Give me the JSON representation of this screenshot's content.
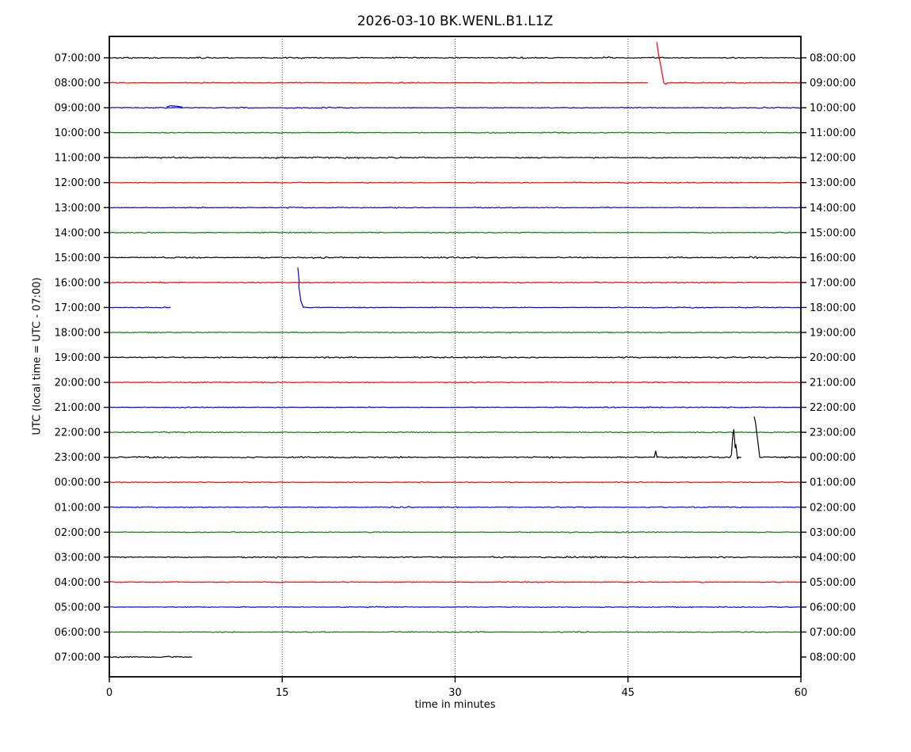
{
  "title": "2026-03-10 BK.WENL.B1.L1Z",
  "xlabel": "time in minutes",
  "ylabel": "UTC (local time = UTC - 07:00)",
  "chart_data": {
    "type": "line",
    "subtype": "helicorder-dayplot",
    "title": "2026-03-10 BK.WENL.B1.L1Z",
    "xlabel": "time in minutes",
    "ylabel_left": "UTC (local time = UTC - 07:00)",
    "xlim": [
      0,
      60
    ],
    "x_ticks": [
      0,
      15,
      30,
      45,
      60
    ],
    "grid_x": [
      15,
      30,
      45
    ],
    "grid_style": "dotted",
    "minutes_per_row": 60,
    "colors": {
      "black": "#000000",
      "red": "#ff0000",
      "blue": "#0000ff",
      "green": "#008000"
    },
    "color_cycle": [
      "black",
      "red",
      "blue",
      "green"
    ],
    "rows": [
      {
        "utc": "07:00:00",
        "end": "08:00:00",
        "color": "black",
        "segments": [
          {
            "flat": [
              0,
              60
            ]
          }
        ]
      },
      {
        "utc": "08:00:00",
        "end": "09:00:00",
        "color": "red",
        "segments": [
          {
            "flat": [
              0,
              46.7
            ]
          },
          {
            "line": [
              [
                47.5,
                51
              ],
              [
                47.64,
                37
              ],
              [
                48.11,
                0
              ],
              [
                48.28,
                -2
              ],
              [
                48.45,
                0
              ]
            ]
          },
          {
            "flat": [
              48.45,
              60
            ]
          }
        ]
      },
      {
        "utc": "09:00:00",
        "end": "10:00:00",
        "color": "blue",
        "segments": [
          {
            "flat": [
              0,
              60
            ]
          },
          {
            "line": [
              [
                5.0,
                1
              ],
              [
                5.3,
                2.5
              ],
              [
                5.8,
                2
              ],
              [
                6.3,
                1
              ]
            ]
          }
        ]
      },
      {
        "utc": "10:00:00",
        "end": "11:00:00",
        "color": "green",
        "segments": [
          {
            "flat": [
              0,
              60
            ]
          }
        ]
      },
      {
        "utc": "11:00:00",
        "end": "12:00:00",
        "color": "black",
        "segments": [
          {
            "flat": [
              0,
              60
            ]
          }
        ]
      },
      {
        "utc": "12:00:00",
        "end": "13:00:00",
        "color": "red",
        "segments": [
          {
            "flat": [
              0,
              60
            ]
          }
        ]
      },
      {
        "utc": "13:00:00",
        "end": "14:00:00",
        "color": "blue",
        "segments": [
          {
            "flat": [
              0,
              60
            ]
          }
        ]
      },
      {
        "utc": "14:00:00",
        "end": "15:00:00",
        "color": "green",
        "segments": [
          {
            "flat": [
              0,
              60
            ]
          }
        ]
      },
      {
        "utc": "15:00:00",
        "end": "16:00:00",
        "color": "black",
        "segments": [
          {
            "flat": [
              0,
              60
            ]
          }
        ]
      },
      {
        "utc": "16:00:00",
        "end": "17:00:00",
        "color": "red",
        "segments": [
          {
            "flat": [
              0,
              60
            ]
          }
        ]
      },
      {
        "utc": "17:00:00",
        "end": "18:00:00",
        "color": "blue",
        "segments": [
          {
            "flat": [
              0,
              5.29
            ]
          },
          {
            "line": [
              [
                16.36,
                50
              ],
              [
                16.47,
                33
              ],
              [
                16.44,
                27
              ],
              [
                16.62,
                8
              ],
              [
                16.84,
                0
              ]
            ]
          },
          {
            "flat": [
              16.84,
              60
            ]
          }
        ]
      },
      {
        "utc": "18:00:00",
        "end": "19:00:00",
        "color": "green",
        "segments": [
          {
            "flat": [
              0,
              60
            ]
          }
        ]
      },
      {
        "utc": "19:00:00",
        "end": "20:00:00",
        "color": "black",
        "segments": [
          {
            "flat": [
              0,
              60
            ]
          }
        ]
      },
      {
        "utc": "20:00:00",
        "end": "21:00:00",
        "color": "red",
        "segments": [
          {
            "flat": [
              0,
              60
            ]
          }
        ]
      },
      {
        "utc": "21:00:00",
        "end": "22:00:00",
        "color": "blue",
        "segments": [
          {
            "flat": [
              0,
              60
            ]
          }
        ]
      },
      {
        "utc": "22:00:00",
        "end": "23:00:00",
        "color": "green",
        "segments": [
          {
            "flat": [
              0,
              60
            ]
          }
        ]
      },
      {
        "utc": "23:00:00",
        "end": "00:00:00",
        "color": "black",
        "segments": [
          {
            "flat": [
              0,
              47.28
            ]
          },
          {
            "line": [
              [
                47.28,
                0
              ],
              [
                47.4,
                8
              ],
              [
                47.52,
                0
              ]
            ]
          },
          {
            "flat": [
              47.52,
              53.85
            ]
          },
          {
            "line": [
              [
                53.85,
                0
              ],
              [
                53.97,
                3
              ],
              [
                54.1,
                30
              ],
              [
                54.18,
                35
              ],
              [
                54.3,
                12
              ],
              [
                54.36,
                16
              ],
              [
                54.5,
                -2
              ],
              [
                54.6,
                0
              ]
            ]
          },
          {
            "flat": [
              54.6,
              54.8
            ]
          },
          {
            "line": [
              [
                55.95,
                51
              ],
              [
                56.06,
                44
              ],
              [
                56.43,
                0
              ]
            ]
          },
          {
            "flat": [
              56.43,
              60
            ]
          }
        ]
      },
      {
        "utc": "00:00:00",
        "end": "01:00:00",
        "color": "red",
        "segments": [
          {
            "flat": [
              0,
              60
            ]
          }
        ]
      },
      {
        "utc": "01:00:00",
        "end": "02:00:00",
        "color": "blue",
        "segments": [
          {
            "flat": [
              0,
              60
            ]
          }
        ]
      },
      {
        "utc": "02:00:00",
        "end": "03:00:00",
        "color": "green",
        "segments": [
          {
            "flat": [
              0,
              60
            ]
          }
        ]
      },
      {
        "utc": "03:00:00",
        "end": "04:00:00",
        "color": "black",
        "segments": [
          {
            "flat": [
              0,
              60
            ]
          }
        ]
      },
      {
        "utc": "04:00:00",
        "end": "05:00:00",
        "color": "red",
        "segments": [
          {
            "flat": [
              0,
              60
            ]
          }
        ]
      },
      {
        "utc": "05:00:00",
        "end": "06:00:00",
        "color": "blue",
        "segments": [
          {
            "flat": [
              0,
              60
            ]
          }
        ]
      },
      {
        "utc": "06:00:00",
        "end": "07:00:00",
        "color": "green",
        "segments": [
          {
            "flat": [
              0,
              60
            ]
          }
        ]
      },
      {
        "utc": "07:00:00",
        "end": "08:00:00",
        "color": "black",
        "segments": [
          {
            "flat": [
              0,
              7.15
            ]
          }
        ]
      }
    ]
  }
}
